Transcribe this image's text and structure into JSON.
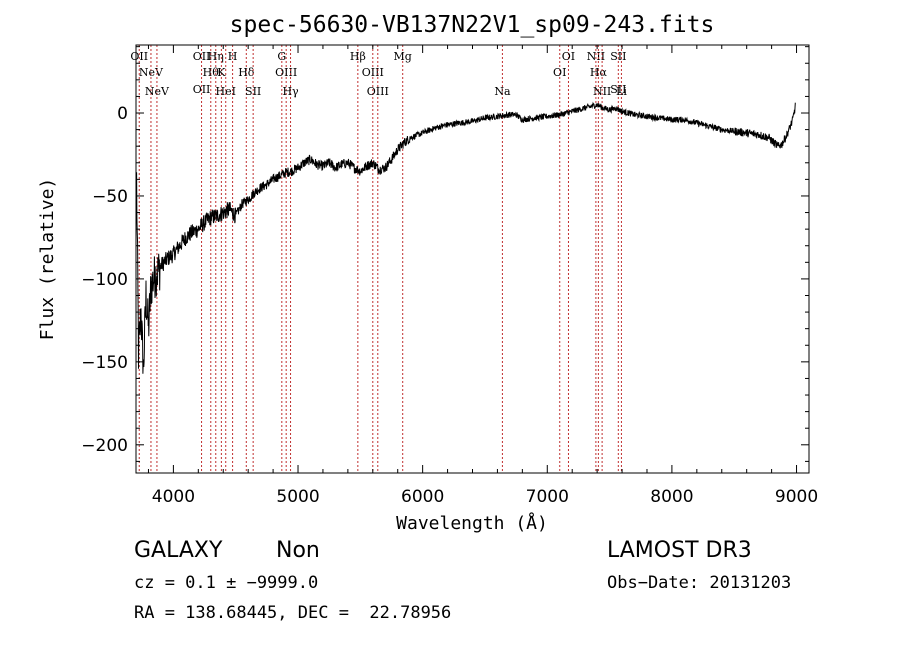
{
  "chart_data": {
    "type": "line",
    "title": "spec-56630-VB137N22V1_sp09-243.fits",
    "xlabel": "Wavelength (Å)",
    "ylabel": "Flux (relative)",
    "xlim": [
      3700,
      9100
    ],
    "ylim": [
      -217,
      41
    ],
    "xticks": [
      4000,
      5000,
      6000,
      7000,
      8000,
      9000
    ],
    "xtick_labels": [
      "4000",
      "5000",
      "6000",
      "7000",
      "8000",
      "9000"
    ],
    "yticks": [
      -200,
      -150,
      -100,
      -50,
      0
    ],
    "ytick_labels": [
      "−200",
      "−150",
      "−100",
      "−50",
      "0"
    ],
    "grid": false,
    "series": [
      {
        "name": "spectrum",
        "x": [
          3705,
          3720,
          3740,
          3760,
          3780,
          3800,
          3820,
          3840,
          3860,
          3880,
          3900,
          3950,
          4000,
          4050,
          4100,
          4150,
          4200,
          4250,
          4300,
          4350,
          4400,
          4450,
          4500,
          4550,
          4600,
          4650,
          4700,
          4750,
          4800,
          4850,
          4900,
          4950,
          5000,
          5050,
          5100,
          5150,
          5200,
          5250,
          5300,
          5350,
          5400,
          5450,
          5500,
          5550,
          5600,
          5650,
          5700,
          5750,
          5800,
          5850,
          5900,
          6000,
          6100,
          6200,
          6300,
          6400,
          6500,
          6600,
          6700,
          6750,
          6800,
          6900,
          7000,
          7100,
          7200,
          7300,
          7400,
          7450,
          7500,
          7550,
          7600,
          7700,
          7800,
          7900,
          8000,
          8100,
          8200,
          8300,
          8400,
          8500,
          8600,
          8700,
          8780,
          8820,
          8850,
          8880,
          8910,
          8940,
          8970,
          8990
        ],
        "y": [
          -40,
          -145,
          -120,
          -155,
          -110,
          -130,
          -105,
          -100,
          -97,
          -95,
          -92,
          -88,
          -85,
          -80,
          -75,
          -72,
          -70,
          -66,
          -63,
          -62,
          -60,
          -58,
          -62,
          -55,
          -52,
          -48,
          -45,
          -43,
          -40,
          -38,
          -36,
          -35,
          -33,
          -30,
          -28,
          -31,
          -32,
          -30,
          -33,
          -31,
          -30,
          -33,
          -35,
          -32,
          -30,
          -34,
          -33,
          -28,
          -22,
          -18,
          -15,
          -12,
          -9,
          -7,
          -6,
          -5,
          -3,
          -2,
          -1,
          -1,
          -4,
          -3,
          -2,
          -1,
          1,
          3,
          5,
          3,
          2,
          3,
          1,
          -1,
          -2,
          -3,
          -4,
          -4,
          -6,
          -8,
          -10,
          -11,
          -12,
          -13,
          -15,
          -18,
          -20,
          -19,
          -15,
          -10,
          -4,
          4
        ]
      }
    ],
    "lines": [
      {
        "wavelength": 3726,
        "labels": [
          "OII"
        ],
        "level": 0
      },
      {
        "wavelength": 3820,
        "labels": [
          "NeV"
        ],
        "level": 1
      },
      {
        "wavelength": 3868,
        "labels": [
          "NeV"
        ],
        "level": 2
      },
      {
        "wavelength": 4226,
        "labels": [
          "OII",
          "OII"
        ],
        "level": 0
      },
      {
        "wavelength": 4300,
        "labels": [
          "Hθ"
        ],
        "level": 1
      },
      {
        "wavelength": 4340,
        "labels": [
          "Hη"
        ],
        "level": 0
      },
      {
        "wavelength": 4385,
        "labels": [
          "K"
        ],
        "level": 1
      },
      {
        "wavelength": 4420,
        "labels": [
          "HeI"
        ],
        "level": 2
      },
      {
        "wavelength": 4475,
        "labels": [
          "H"
        ],
        "level": 0
      },
      {
        "wavelength": 4585,
        "labels": [
          "Hδ"
        ],
        "level": 1
      },
      {
        "wavelength": 4640,
        "labels": [
          "SII"
        ],
        "level": 2
      },
      {
        "wavelength": 4870,
        "labels": [
          "G"
        ],
        "level": 0
      },
      {
        "wavelength": 4905,
        "labels": [
          "OIII"
        ],
        "level": 1
      },
      {
        "wavelength": 4940,
        "labels": [
          "Hγ"
        ],
        "level": 2
      },
      {
        "wavelength": 5480,
        "labels": [
          "Hβ"
        ],
        "level": 0
      },
      {
        "wavelength": 5600,
        "labels": [
          "OIII"
        ],
        "level": 1
      },
      {
        "wavelength": 5640,
        "labels": [
          "OIII"
        ],
        "level": 2
      },
      {
        "wavelength": 5840,
        "labels": [
          "Mg"
        ],
        "level": 0
      },
      {
        "wavelength": 6640,
        "labels": [
          "Na"
        ],
        "level": 2
      },
      {
        "wavelength": 7100,
        "labels": [
          "OI"
        ],
        "level": 1
      },
      {
        "wavelength": 7170,
        "labels": [
          "OI"
        ],
        "level": 0
      },
      {
        "wavelength": 7390,
        "labels": [
          "NII"
        ],
        "level": 0
      },
      {
        "wavelength": 7410,
        "labels": [
          "Hα"
        ],
        "level": 1
      },
      {
        "wavelength": 7440,
        "labels": [
          "NII"
        ],
        "level": 2
      },
      {
        "wavelength": 7570,
        "labels": [
          "SII",
          "SII"
        ],
        "level": 0
      },
      {
        "wavelength": 7595,
        "labels": [
          "Li"
        ],
        "level": 2
      }
    ]
  },
  "footer": {
    "object_class": "GALAXY",
    "subclass": "Non",
    "cz": "cz = 0.1 ± −9999.0",
    "coords": "RA = 138.68445, DEC =  22.78956",
    "survey": "LAMOST DR3",
    "obs_date": "Obs−Date: 20131203"
  },
  "colors": {
    "spectrum": "#000000",
    "lines": "#c03030",
    "axes": "#000000"
  }
}
